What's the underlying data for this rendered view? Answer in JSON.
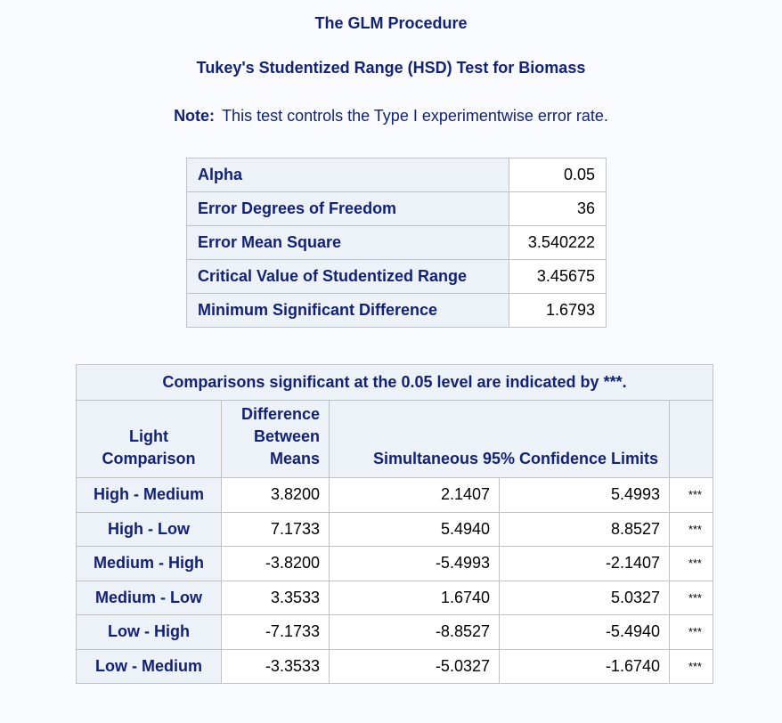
{
  "procedure_title": "The GLM Procedure",
  "test_title": "Tukey's Studentized Range (HSD) Test for Biomass",
  "note": {
    "label": "Note:",
    "text": "This test controls the Type I experimentwise error rate."
  },
  "stats": [
    {
      "label": "Alpha",
      "value": "0.05"
    },
    {
      "label": "Error Degrees of Freedom",
      "value": "36"
    },
    {
      "label": "Error Mean Square",
      "value": "3.540222"
    },
    {
      "label": "Critical Value of Studentized Range",
      "value": "3.45675"
    },
    {
      "label": "Minimum Significant Difference",
      "value": "1.6793"
    }
  ],
  "comparisons": {
    "caption": "Comparisons significant at the 0.05 level are indicated by ***.",
    "headers": {
      "light_line1": "Light",
      "light_line2": "Comparison",
      "diff_line1": "Difference",
      "diff_line2": "Between",
      "diff_line3": "Means",
      "limits": "Simultaneous 95% Confidence Limits"
    },
    "rows": [
      {
        "comparison": "High - Medium",
        "difference": "3.8200",
        "lower": "2.1407",
        "upper": "5.4993",
        "sig": "***"
      },
      {
        "comparison": "High - Low",
        "difference": "7.1733",
        "lower": "5.4940",
        "upper": "8.8527",
        "sig": "***"
      },
      {
        "comparison": "Medium - High",
        "difference": "-3.8200",
        "lower": "-5.4993",
        "upper": "-2.1407",
        "sig": "***"
      },
      {
        "comparison": "Medium - Low",
        "difference": "3.3533",
        "lower": "1.6740",
        "upper": "5.0327",
        "sig": "***"
      },
      {
        "comparison": "Low - High",
        "difference": "-7.1733",
        "lower": "-8.8527",
        "upper": "-5.4940",
        "sig": "***"
      },
      {
        "comparison": "Low - Medium",
        "difference": "-3.3533",
        "lower": "-5.0327",
        "upper": "-1.6740",
        "sig": "***"
      }
    ]
  }
}
